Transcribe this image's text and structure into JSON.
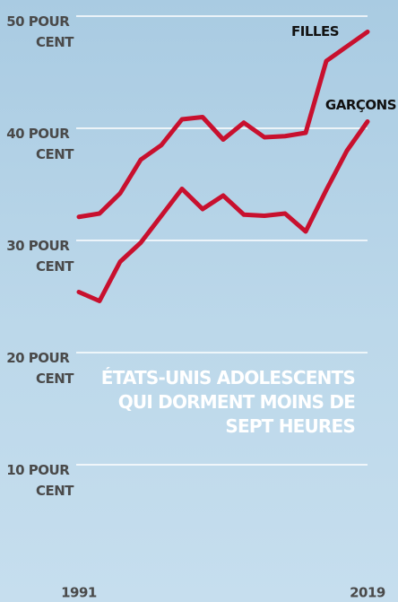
{
  "chart_data": {
    "type": "line",
    "title": "ÉTATS-UNIS ADOLESCENTS QUI DORMENT MOINS DE SEPT HEURES",
    "x": [
      1991,
      1993,
      1995,
      1997,
      1999,
      2001,
      2003,
      2005,
      2007,
      2009,
      2011,
      2013,
      2015,
      2017,
      2019
    ],
    "series": [
      {
        "name": "FILLES",
        "color": "#c8102e",
        "values": [
          32.1,
          32.4,
          34.2,
          37.2,
          38.5,
          40.8,
          41.0,
          39.0,
          40.5,
          39.2,
          39.3,
          39.6,
          46.0,
          47.3,
          48.6
        ]
      },
      {
        "name": "GARÇONS",
        "color": "#c8102e",
        "values": [
          25.4,
          24.6,
          28.1,
          29.8,
          32.2,
          34.6,
          32.8,
          34.0,
          32.3,
          32.2,
          32.4,
          30.8,
          34.5,
          38.0,
          40.6
        ]
      }
    ],
    "xlim": [
      1991,
      2019
    ],
    "xticks": [
      1991,
      2019
    ],
    "ylim": [
      0,
      50
    ],
    "yticks": [
      {
        "value": 10,
        "label": "10 POUR CENT"
      },
      {
        "value": 20,
        "label": "20 POUR CENT"
      },
      {
        "value": 30,
        "label": "30 POUR CENT"
      },
      {
        "value": 40,
        "label": "40 POUR CENT"
      },
      {
        "value": 50,
        "label": "50 POUR CENT"
      }
    ],
    "grid": true
  }
}
